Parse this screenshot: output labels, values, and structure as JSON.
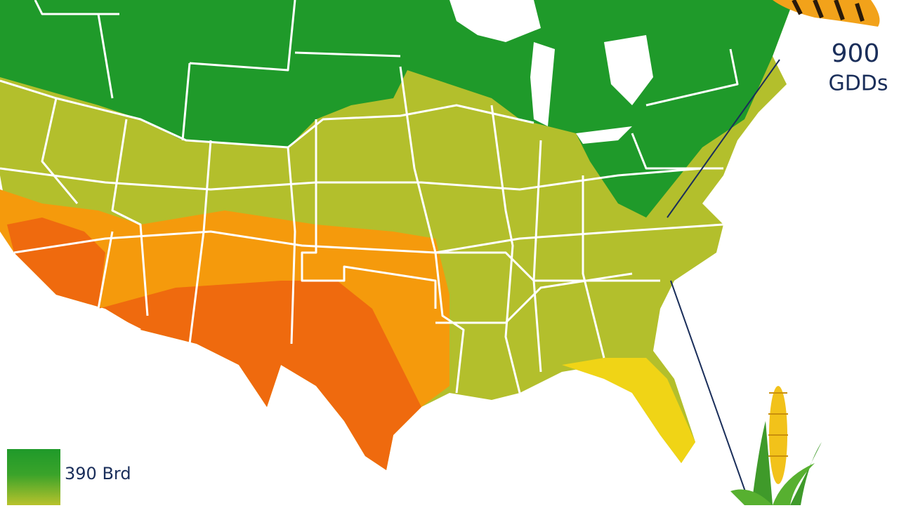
{
  "callout": {
    "value": "900",
    "unit": "GDDs"
  },
  "legend": {
    "label": "390 Brd"
  }
}
